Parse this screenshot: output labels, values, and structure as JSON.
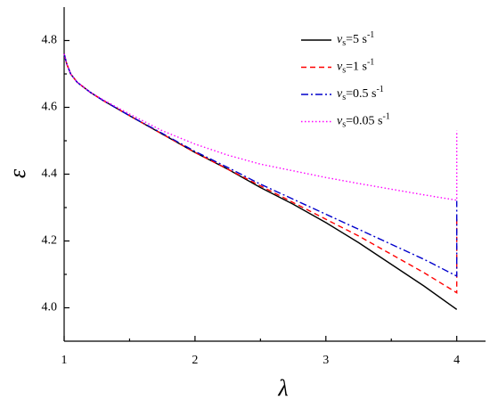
{
  "chart_data": {
    "type": "line",
    "xlabel": "λ",
    "ylabel": "ε",
    "xlim": [
      1,
      4.22
    ],
    "ylim": [
      3.9,
      4.9
    ],
    "xticks": [
      1,
      2,
      3,
      4
    ],
    "yticks": [
      {
        "value": 4,
        "label": "4.0"
      },
      4.2,
      4.4,
      4.6,
      4.8
    ],
    "legend": "upper right",
    "series": [
      {
        "name": "vs=5 s-1",
        "color": "#000000",
        "dash": "solid",
        "x": [
          1,
          1.02,
          1.05,
          1.1,
          1.2,
          1.3,
          1.5,
          1.75,
          2,
          2.25,
          2.5,
          2.75,
          3,
          3.25,
          3.5,
          3.75,
          4
        ],
        "values": [
          4.76,
          4.73,
          4.7,
          4.675,
          4.645,
          4.62,
          4.575,
          4.52,
          4.465,
          4.415,
          4.36,
          4.31,
          4.255,
          4.195,
          4.13,
          4.065,
          3.995
        ]
      },
      {
        "name": "vs=1 s-1",
        "color": "#ff0000",
        "dash": "dash",
        "x": [
          1,
          1.02,
          1.05,
          1.1,
          1.2,
          1.3,
          1.5,
          1.75,
          2,
          2.25,
          2.5,
          2.75,
          3,
          3.25,
          3.5,
          3.75,
          4,
          4
        ],
        "values": [
          4.76,
          4.73,
          4.7,
          4.675,
          4.645,
          4.62,
          4.575,
          4.52,
          4.465,
          4.415,
          4.365,
          4.315,
          4.265,
          4.215,
          4.16,
          4.105,
          4.045,
          4.27
        ]
      },
      {
        "name": "vs=0.5 s-1",
        "color": "#0000cc",
        "dash": "dashdot",
        "x": [
          1,
          1.02,
          1.05,
          1.1,
          1.2,
          1.3,
          1.5,
          1.75,
          2,
          2.25,
          2.5,
          2.75,
          3,
          3.25,
          3.5,
          3.75,
          4,
          4
        ],
        "values": [
          4.76,
          4.73,
          4.7,
          4.675,
          4.645,
          4.62,
          4.575,
          4.522,
          4.468,
          4.42,
          4.37,
          4.325,
          4.28,
          4.235,
          4.19,
          4.145,
          4.095,
          4.32
        ]
      },
      {
        "name": "vs=0.05 s-1",
        "color": "#ff00ff",
        "dash": "dot",
        "x": [
          1,
          1.02,
          1.05,
          1.1,
          1.2,
          1.3,
          1.5,
          1.75,
          2,
          2.25,
          2.5,
          2.75,
          3,
          3.25,
          3.5,
          3.75,
          4,
          4
        ],
        "values": [
          4.76,
          4.73,
          4.7,
          4.675,
          4.645,
          4.622,
          4.58,
          4.53,
          4.49,
          4.457,
          4.43,
          4.41,
          4.39,
          4.372,
          4.355,
          4.338,
          4.322,
          4.53
        ]
      }
    ]
  }
}
